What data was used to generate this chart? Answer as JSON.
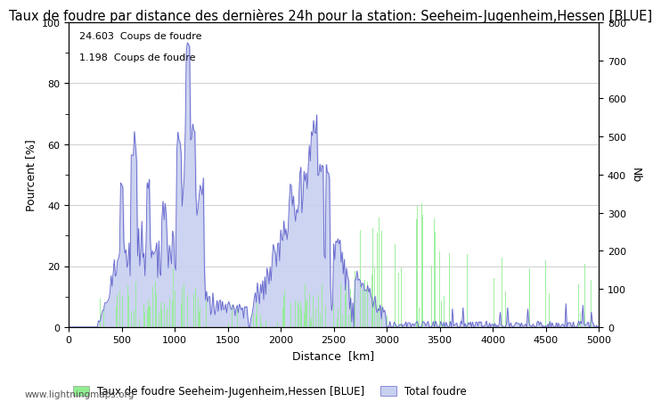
{
  "title": "Taux de foudre par distance des dernières 24h pour la station: Seeheim-Jugenheim,Hessen [BLUE]",
  "xlabel": "Distance  [km]",
  "ylabel_left": "Pourcent [%]",
  "ylabel_right": "Nb",
  "annotation1": "24.603  Coups de foudre",
  "annotation2": "1.198  Coups de foudre",
  "footer": "www.lightningmaps.org",
  "legend1": "Taux de foudre Seeheim-Jugenheim,Hessen [BLUE]",
  "legend2": "Total foudre",
  "xlim": [
    0,
    5000
  ],
  "ylim_left": [
    0,
    100
  ],
  "ylim_right": [
    0,
    800
  ],
  "xticks": [
    0,
    500,
    1000,
    1500,
    2000,
    2500,
    3000,
    3500,
    4000,
    4500,
    5000
  ],
  "yticks_left": [
    0,
    20,
    40,
    60,
    80,
    100
  ],
  "yticks_right": [
    0,
    100,
    200,
    300,
    400,
    500,
    600,
    700,
    800
  ],
  "bar_color": "#90EE90",
  "fill_color": "#c8d0f0",
  "line_color": "#6666cc",
  "background_color": "#ffffff",
  "title_fontsize": 10.5,
  "axis_fontsize": 9
}
